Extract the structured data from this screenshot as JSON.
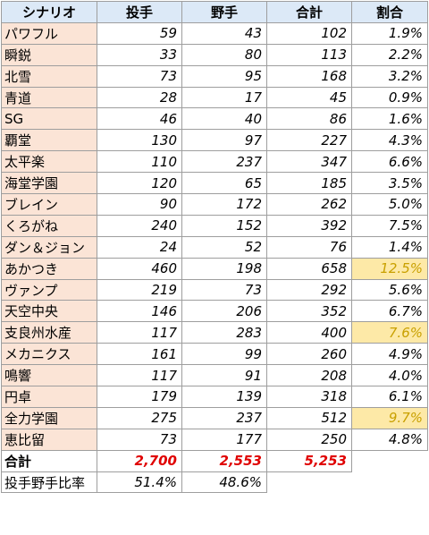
{
  "headers": [
    "シナリオ",
    "投手",
    "野手",
    "合計",
    "割合"
  ],
  "rows": [
    {
      "name": "パワフル",
      "pitcher": "59",
      "fielder": "43",
      "total": "102",
      "rate": "1.9%",
      "hl": false
    },
    {
      "name": "瞬鋭",
      "pitcher": "33",
      "fielder": "80",
      "total": "113",
      "rate": "2.2%",
      "hl": false
    },
    {
      "name": "北雪",
      "pitcher": "73",
      "fielder": "95",
      "total": "168",
      "rate": "3.2%",
      "hl": false
    },
    {
      "name": "青道",
      "pitcher": "28",
      "fielder": "17",
      "total": "45",
      "rate": "0.9%",
      "hl": false
    },
    {
      "name": "SG",
      "pitcher": "46",
      "fielder": "40",
      "total": "86",
      "rate": "1.6%",
      "hl": false
    },
    {
      "name": "覇堂",
      "pitcher": "130",
      "fielder": "97",
      "total": "227",
      "rate": "4.3%",
      "hl": false
    },
    {
      "name": "太平楽",
      "pitcher": "110",
      "fielder": "237",
      "total": "347",
      "rate": "6.6%",
      "hl": false
    },
    {
      "name": "海堂学園",
      "pitcher": "120",
      "fielder": "65",
      "total": "185",
      "rate": "3.5%",
      "hl": false
    },
    {
      "name": "ブレイン",
      "pitcher": "90",
      "fielder": "172",
      "total": "262",
      "rate": "5.0%",
      "hl": false
    },
    {
      "name": "くろがね",
      "pitcher": "240",
      "fielder": "152",
      "total": "392",
      "rate": "7.5%",
      "hl": false
    },
    {
      "name": "ダン＆ジョン",
      "pitcher": "24",
      "fielder": "52",
      "total": "76",
      "rate": "1.4%",
      "hl": false
    },
    {
      "name": "あかつき",
      "pitcher": "460",
      "fielder": "198",
      "total": "658",
      "rate": "12.5%",
      "hl": true
    },
    {
      "name": "ヴァンプ",
      "pitcher": "219",
      "fielder": "73",
      "total": "292",
      "rate": "5.6%",
      "hl": false
    },
    {
      "name": "天空中央",
      "pitcher": "146",
      "fielder": "206",
      "total": "352",
      "rate": "6.7%",
      "hl": false
    },
    {
      "name": "支良州水産",
      "pitcher": "117",
      "fielder": "283",
      "total": "400",
      "rate": "7.6%",
      "hl": true
    },
    {
      "name": "メカニクス",
      "pitcher": "161",
      "fielder": "99",
      "total": "260",
      "rate": "4.9%",
      "hl": false
    },
    {
      "name": "鳴響",
      "pitcher": "117",
      "fielder": "91",
      "total": "208",
      "rate": "4.0%",
      "hl": false
    },
    {
      "name": "円卓",
      "pitcher": "179",
      "fielder": "139",
      "total": "318",
      "rate": "6.1%",
      "hl": false
    },
    {
      "name": "全力学園",
      "pitcher": "275",
      "fielder": "237",
      "total": "512",
      "rate": "9.7%",
      "hl": true
    },
    {
      "name": "恵比留",
      "pitcher": "73",
      "fielder": "177",
      "total": "250",
      "rate": "4.8%",
      "hl": false
    }
  ],
  "total": {
    "label": "合計",
    "pitcher": "2,700",
    "fielder": "2,553",
    "total": "5,253"
  },
  "ratio": {
    "label": "投手野手比率",
    "pitcher": "51.4%",
    "fielder": "48.6%"
  },
  "colors": {
    "header_bg": "#dce9f7",
    "name_bg": "#fbe4d6",
    "highlight_bg": "#fde9a7",
    "total_red": "#e00000"
  }
}
